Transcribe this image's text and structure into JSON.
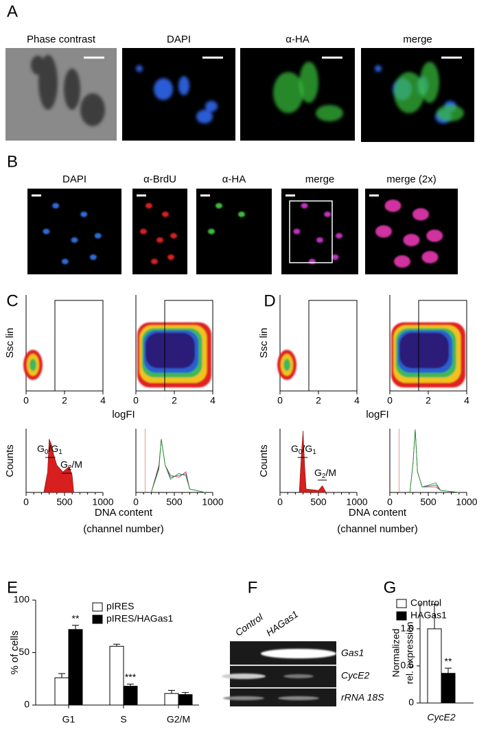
{
  "panel_labels": [
    "A",
    "B",
    "C",
    "D",
    "E",
    "F",
    "G"
  ],
  "panel_a": {
    "titles": [
      "Phase contrast",
      "DAPI",
      "α-HA",
      "merge"
    ]
  },
  "panel_b": {
    "titles": [
      "DAPI",
      "α-BrdU",
      "α-HA",
      "merge",
      "merge (2x)"
    ]
  },
  "flow": {
    "ssc_label": "Ssc lin",
    "logfi_label": "logFI",
    "scatter_xticks": [
      0,
      2,
      4
    ],
    "counts_label": "Counts",
    "hist_xticks": [
      0,
      500,
      1000
    ],
    "xlabel": "DNA content",
    "xlabel2": "(channel number)",
    "g0g1": [
      "G",
      "0",
      "/G",
      "1"
    ],
    "g2m": [
      "G",
      "2",
      "/M"
    ]
  },
  "panel_f": {
    "lanes": [
      "Control",
      "HAGas1"
    ],
    "rows": [
      "Gas1",
      "CycE2",
      "rRNA 18S"
    ]
  },
  "chart_data": [
    {
      "type": "bar",
      "ylabel": "% of cells",
      "categories": [
        "G1",
        "S",
        "G2/M"
      ],
      "ylim": [
        0,
        100
      ],
      "yticks": [
        0,
        50,
        100
      ],
      "series": [
        {
          "name": "pIRES",
          "color": "#ffffff",
          "values": [
            26,
            56,
            11
          ],
          "errors": [
            4,
            2,
            3
          ]
        },
        {
          "name": "pIRES/HAGas1",
          "color": "#000000",
          "values": [
            72,
            18,
            10
          ],
          "errors": [
            4,
            2,
            2
          ]
        }
      ],
      "annotations": [
        "**",
        "***"
      ]
    },
    {
      "type": "bar",
      "ylabel": [
        "Normalized",
        "rel. expression"
      ],
      "categories": [
        "CycE2"
      ],
      "ylim": [
        0,
        1.35
      ],
      "yticks": [
        0,
        {
          "value": 0.5,
          "label": "0.5"
        },
        {
          "value": 1,
          "label": "1.0"
        }
      ],
      "series": [
        {
          "name": "Control",
          "color": "#ffffff",
          "values": [
            1.0
          ],
          "errors": [
            0.33
          ]
        },
        {
          "name": "HAGas1",
          "color": "#000000",
          "values": [
            0.4
          ],
          "errors": [
            0.07
          ]
        }
      ],
      "annotations": [
        "**"
      ]
    }
  ]
}
